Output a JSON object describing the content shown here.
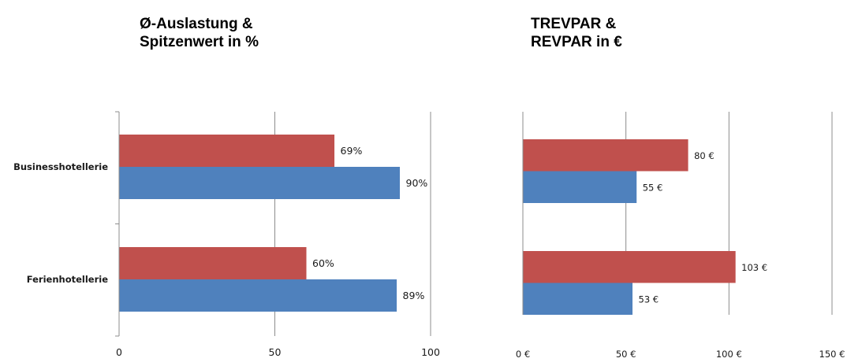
{
  "chart_data": [
    {
      "type": "bar",
      "orientation": "horizontal",
      "title": "Ø-Auslastung & Spitzenwert in %",
      "title_lines": [
        "Ø-Auslastung &",
        "Spitzenwert in %"
      ],
      "categories": [
        "Businesshotellerie",
        "Ferienhotellerie"
      ],
      "series": [
        {
          "values": [
            69,
            60
          ],
          "labels": [
            "69%",
            "60%"
          ],
          "color": "#C0504D"
        },
        {
          "values": [
            90,
            89
          ],
          "labels": [
            "90%",
            "89%"
          ],
          "color": "#4F81BD"
        }
      ],
      "xlim": [
        0,
        100
      ],
      "xticks": [
        0,
        50,
        100
      ],
      "xtick_labels": [
        "0",
        "50",
        "100"
      ],
      "grid": true,
      "legend": "none"
    },
    {
      "type": "bar",
      "orientation": "horizontal",
      "title": "TREVPAR & REVPAR in €",
      "title_lines": [
        "TREVPAR &",
        "REVPAR in €"
      ],
      "categories": [
        "Businesshotellerie",
        "Ferienhotellerie"
      ],
      "series": [
        {
          "values": [
            80,
            103
          ],
          "labels": [
            "80 €",
            "103 €"
          ],
          "color": "#C0504D"
        },
        {
          "values": [
            55,
            53
          ],
          "labels": [
            "55 €",
            "53 €"
          ],
          "color": "#4F81BD"
        }
      ],
      "xlim": [
        0,
        150
      ],
      "xticks": [
        0,
        50,
        100,
        150
      ],
      "xtick_labels": [
        "0 €",
        "50 €",
        "100 €",
        "150 €"
      ],
      "grid": true,
      "legend": "none"
    }
  ]
}
